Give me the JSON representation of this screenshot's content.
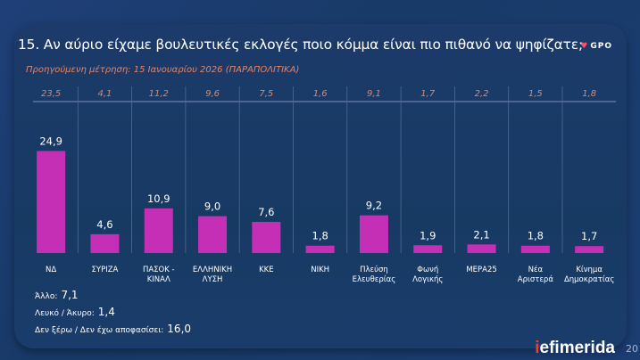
{
  "header": {
    "logo": "GPO",
    "title": "15. Αν αύριο είχαμε βουλευτικές εκλογές ποιο κόμμα είναι πιο πιθανό να ψηφίζατε;",
    "subtitle": "Προηγούμενη μέτρηση: 15 Ιανουαρίου 2026 (ΠΑΡΑΠΟΛΙΤΙΚΑ)"
  },
  "chart_data": {
    "type": "bar",
    "categories": [
      "ΝΔ",
      "ΣΥΡΙΖΑ",
      "ΠΑΣΟΚ - ΚΙΝΑΛ",
      "ΕΛΛΗΝΙΚΗ ΛΥΣΗ",
      "ΚΚΕ",
      "ΝΙΚΗ",
      "Πλεύση Ελευθερίας",
      "Φωνή Λογικής",
      "ΜΕΡΑ25",
      "Νέα Αριστερά",
      "Κίνημα Δημοκρατίας"
    ],
    "category_lines": [
      [
        "ΝΔ"
      ],
      [
        "ΣΥΡΙΖΑ"
      ],
      [
        "ΠΑΣΟΚ -",
        "ΚΙΝΑΛ"
      ],
      [
        "ΕΛΛΗΝΙΚΗ",
        "ΛΥΣΗ"
      ],
      [
        "ΚΚΕ"
      ],
      [
        "ΝΙΚΗ"
      ],
      [
        "Πλεύση",
        "Ελευθερίας"
      ],
      [
        "Φωνή",
        "Λογικής"
      ],
      [
        "ΜΕΡΑ25"
      ],
      [
        "Νέα",
        "Αριστερά"
      ],
      [
        "Κίνημα",
        "Δημοκρατίας"
      ]
    ],
    "values": [
      24.9,
      4.6,
      10.9,
      9.0,
      7.6,
      1.8,
      9.2,
      1.9,
      2.1,
      1.8,
      1.7
    ],
    "value_labels": [
      "24,9",
      "4,6",
      "10,9",
      "9,0",
      "7,6",
      "1,8",
      "9,2",
      "1,9",
      "2,1",
      "1,8",
      "1,7"
    ],
    "previous_values": [
      23.5,
      4.1,
      11.2,
      9.6,
      7.5,
      1.6,
      9.1,
      1.7,
      2.2,
      1.5,
      1.8
    ],
    "previous_labels": [
      "23,5",
      "4,1",
      "11,2",
      "9,6",
      "7,5",
      "1,6",
      "9,1",
      "1,7",
      "2,2",
      "1,5",
      "1,8"
    ],
    "bar_color": "#c52fb6",
    "previous_color": "#e0866a",
    "grid": false
  },
  "notes": [
    {
      "label": "Άλλο:",
      "value": "7,1"
    },
    {
      "label": "Λευκό / Άκυρο:",
      "value": "1,4"
    },
    {
      "label": "Δεν ξέρω / Δεν έχω αποφασίσει:",
      "value": "16,0"
    }
  ],
  "footer": {
    "brand_i": "i",
    "brand_rest": "efimerida",
    "page": "20"
  }
}
